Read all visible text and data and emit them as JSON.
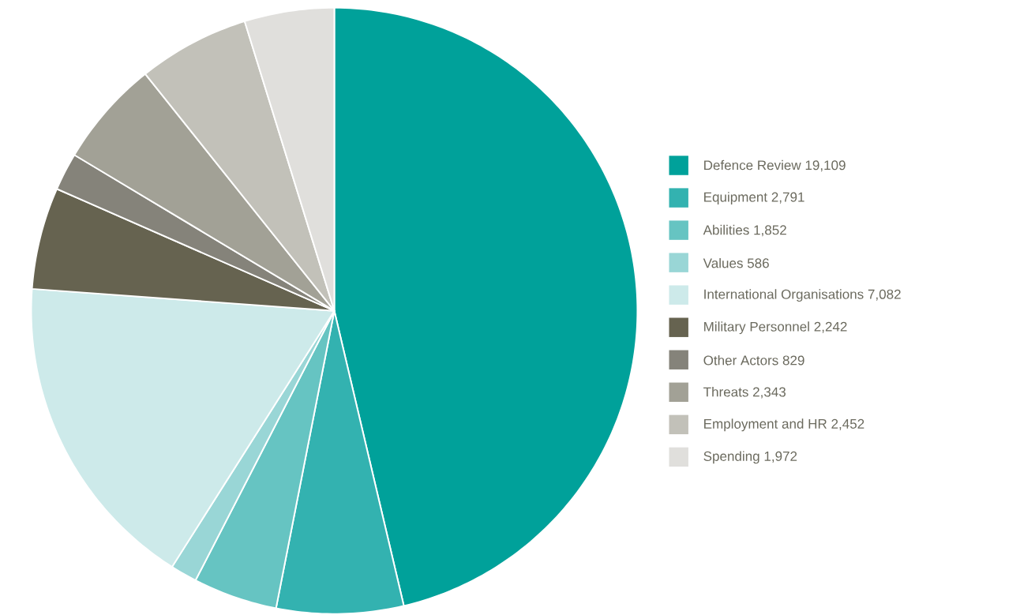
{
  "chart_data": {
    "type": "pie",
    "legend": "right",
    "categories": [
      "Defence Review",
      "Equipment",
      "Abilities",
      "Values",
      "International Organisations",
      "Military Personnel",
      "Other Actors",
      "Threats",
      "Employment and HR",
      "Spending"
    ],
    "values": [
      19109,
      2791,
      1852,
      586,
      7082,
      2242,
      829,
      2343,
      2452,
      1972
    ],
    "value_labels": [
      "19,109",
      "2,791",
      "1,852",
      "586",
      "7,082",
      "2,242",
      "829",
      "2,343",
      "2,452",
      "1,972"
    ],
    "colors": [
      "#00a19a",
      "#33b2b0",
      "#66c4c2",
      "#99d6d6",
      "#cdeaea",
      "#666350",
      "#85837a",
      "#a2a196",
      "#c2c1b9",
      "#e0dfdc"
    ]
  }
}
